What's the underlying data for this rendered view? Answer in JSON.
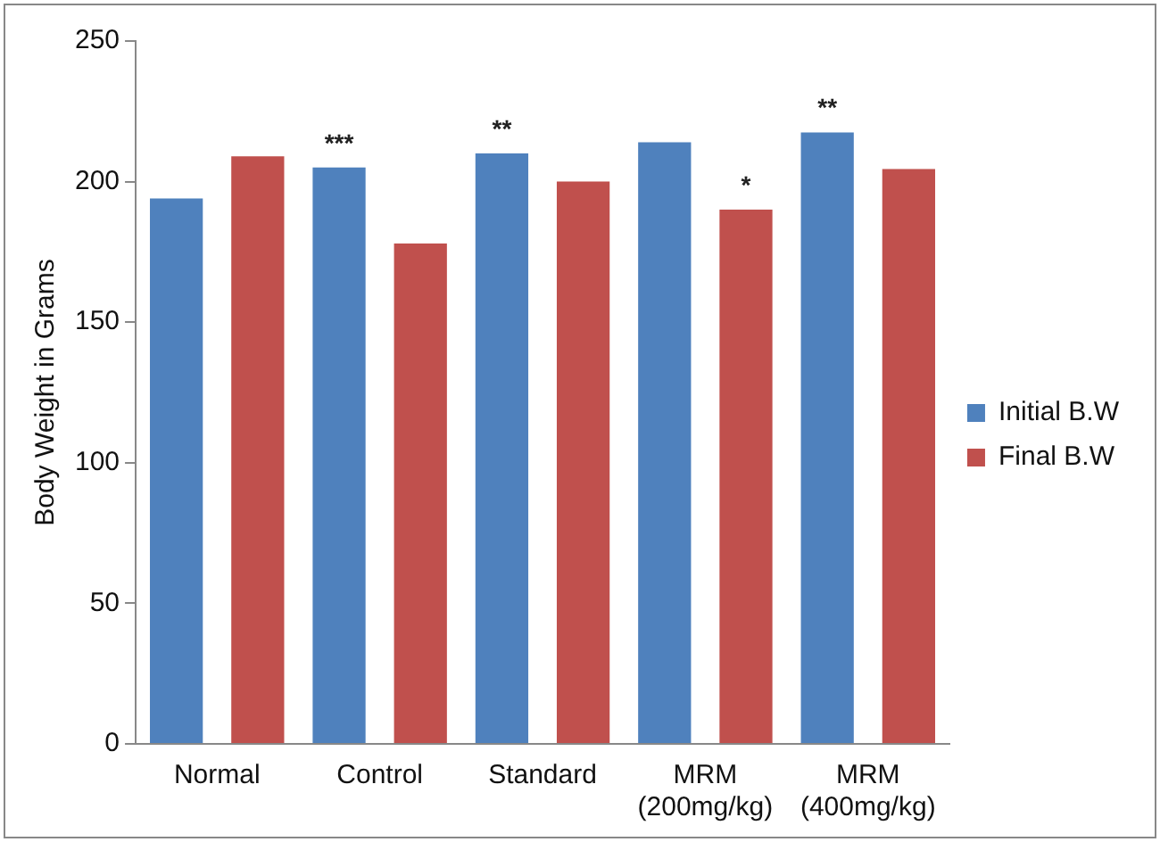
{
  "chart_data": {
    "type": "bar",
    "ylabel": "Body Weight in Grams",
    "categories": [
      "Normal",
      "Control",
      "Standard",
      "MRM\n(200mg/kg)",
      "MRM\n(400mg/kg)"
    ],
    "series": [
      {
        "name": "Initial B.W",
        "color": "#4f81bd",
        "values": [
          194,
          205,
          210,
          214,
          217.5
        ]
      },
      {
        "name": "Final B.W",
        "color": "#c0504d",
        "values": [
          209,
          178,
          200,
          190,
          204.5
        ]
      }
    ],
    "ylim": [
      0,
      250
    ],
    "yticks": [
      0,
      50,
      100,
      150,
      200,
      250
    ],
    "grid": false,
    "legend": "right",
    "annotations": [
      "***",
      "**",
      "*",
      "**"
    ]
  }
}
